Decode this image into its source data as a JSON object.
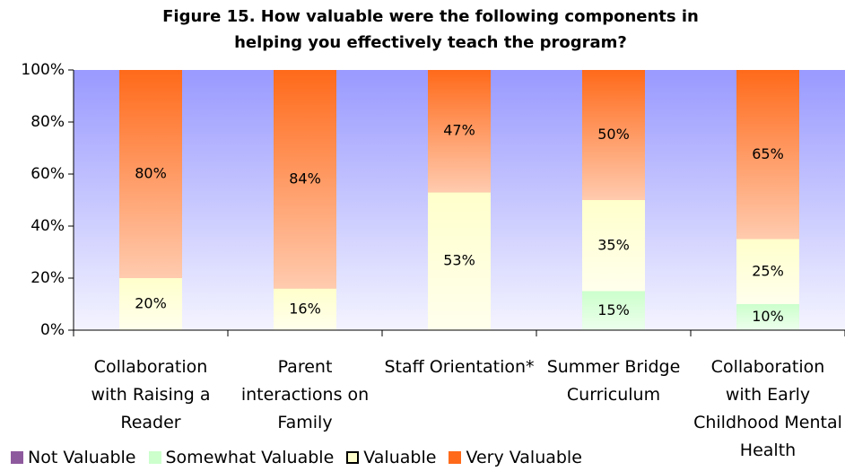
{
  "chart_data": {
    "type": "stacked_bar",
    "title": "Figure 15. How valuable were the following components in helping you effectively teach the program?",
    "categories": [
      "Collaboration with Raising a Reader",
      "Parent interactions on Family",
      "Staff Orientation*",
      "Summer Bridge Curriculum",
      "Collaboration with Early Childhood Mental Health"
    ],
    "series": [
      {
        "name": "Not Valuable",
        "color": "#8e5a9e",
        "values": [
          0,
          0,
          0,
          0,
          0
        ],
        "value_labels": [
          null,
          null,
          null,
          null,
          null
        ]
      },
      {
        "name": "Somewhat Valuable",
        "color": "#ccffcc",
        "values": [
          0,
          0,
          0,
          15,
          10
        ],
        "value_labels": [
          null,
          null,
          null,
          "15%",
          "10%"
        ]
      },
      {
        "name": "Valuable",
        "color": "#ffffcc",
        "values": [
          20,
          16,
          53,
          35,
          25
        ],
        "value_labels": [
          "20%",
          "16%",
          "53%",
          "35%",
          "25%"
        ]
      },
      {
        "name": "Very Valuable",
        "color": "#ff6a1a",
        "values": [
          80,
          84,
          47,
          50,
          65
        ],
        "value_labels": [
          "80%",
          "84%",
          "47%",
          "50%",
          "65%"
        ]
      }
    ],
    "ylim": [
      0,
      100
    ],
    "yticks": [
      {
        "value": 0,
        "label": "0%"
      },
      {
        "value": 20,
        "label": "20%"
      },
      {
        "value": 40,
        "label": "40%"
      },
      {
        "value": 60,
        "label": "60%"
      },
      {
        "value": 80,
        "label": "80%"
      },
      {
        "value": 100,
        "label": "100%"
      }
    ],
    "legend": "bottom"
  }
}
